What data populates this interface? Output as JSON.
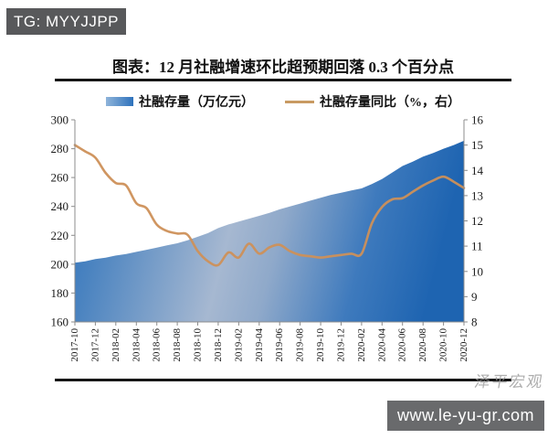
{
  "badges": {
    "tg": "TG: MYYJJPP"
  },
  "header": {
    "title": "图表：12 月社融增速环比超预期回落 0.3 个百分点"
  },
  "footer": {
    "watermark": "泽平宏观",
    "url": "www.le-yu-gr.com"
  },
  "chart_data": {
    "type": "combo",
    "title": "图表：12 月社融增速环比超预期回落 0.3 个百分点",
    "legend_position": "top",
    "grid": false,
    "plot_bg": "#ffffff",
    "axis_color": "#8C8C8C",
    "x": [
      "2017-10",
      "2017-11",
      "2017-12",
      "2018-01",
      "2018-02",
      "2018-03",
      "2018-04",
      "2018-05",
      "2018-06",
      "2018-07",
      "2018-08",
      "2018-09",
      "2018-10",
      "2018-11",
      "2018-12",
      "2019-01",
      "2019-02",
      "2019-03",
      "2019-04",
      "2019-05",
      "2019-06",
      "2019-07",
      "2019-08",
      "2019-09",
      "2019-10",
      "2019-11",
      "2019-12",
      "2020-01",
      "2020-02",
      "2020-03",
      "2020-04",
      "2020-05",
      "2020-06",
      "2020-07",
      "2020-08",
      "2020-09",
      "2020-10",
      "2020-11",
      "2020-12"
    ],
    "x_tick_labels": [
      "2017-10",
      "2017-12",
      "2018-02",
      "2018-04",
      "2018-06",
      "2018-08",
      "2018-10",
      "2018-12",
      "2019-02",
      "2019-04",
      "2019-06",
      "2019-08",
      "2019-10",
      "2019-12",
      "2020-02",
      "2020-04",
      "2020-06",
      "2020-08",
      "2020-10",
      "2020-12"
    ],
    "left_axis": {
      "min": 160,
      "max": 300,
      "step": 20,
      "ticks": [
        160,
        180,
        200,
        220,
        240,
        260,
        280,
        300
      ]
    },
    "right_axis": {
      "min": 8,
      "max": 16,
      "step": 1,
      "ticks": [
        8,
        9,
        10,
        11,
        12,
        13,
        14,
        15,
        16
      ]
    },
    "series": [
      {
        "name": "社融存量（万亿元）",
        "type": "area",
        "axis": "left",
        "gradient": [
          {
            "offset": "0%",
            "color": "#2E72BC"
          },
          {
            "offset": "12%",
            "color": "#4A83C0"
          },
          {
            "offset": "45%",
            "color": "#A6B8D1"
          },
          {
            "offset": "58%",
            "color": "#8FA9CA"
          },
          {
            "offset": "80%",
            "color": "#3E7ABD"
          },
          {
            "offset": "100%",
            "color": "#1E64B1"
          }
        ],
        "values": [
          201,
          202,
          203.5,
          204.5,
          206,
          207,
          208.5,
          210,
          211.5,
          213,
          214.5,
          216.5,
          219,
          221.5,
          225,
          227.5,
          229.5,
          231.5,
          233.5,
          235.5,
          238,
          240,
          242,
          244,
          246,
          248,
          249.5,
          251,
          252.5,
          255.5,
          259,
          263.5,
          268,
          271,
          274.5,
          277,
          280,
          282.5,
          285.5
        ]
      },
      {
        "name": "社融存量同比（%，右）",
        "type": "line",
        "axis": "right",
        "color": "#CE9058",
        "values": [
          15.0,
          14.75,
          14.5,
          13.9,
          13.5,
          13.4,
          12.7,
          12.5,
          11.85,
          11.6,
          11.5,
          11.45,
          10.8,
          10.4,
          10.25,
          10.75,
          10.55,
          11.1,
          10.7,
          10.95,
          11.05,
          10.8,
          10.65,
          10.6,
          10.55,
          10.6,
          10.65,
          10.7,
          10.7,
          11.9,
          12.55,
          12.85,
          12.9,
          13.15,
          13.4,
          13.6,
          13.75,
          13.55,
          13.3
        ]
      }
    ]
  }
}
